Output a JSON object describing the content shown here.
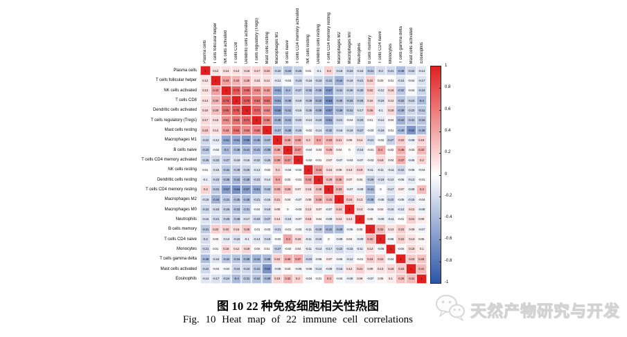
{
  "figure": {
    "caption_zh": "图 10   22 种免疫细胞相关性热图",
    "caption_en": "Fig. 10   Heat map of 22 immune cell correlations"
  },
  "watermark": {
    "icon": "wechat-logo",
    "text": "天然产物研究与开发",
    "color": "#d9d9d9"
  },
  "colorbar": {
    "ticks": [
      "1",
      "0.8",
      "0.6",
      "0.4",
      "0.2",
      "0",
      "-0.2",
      "-0.4",
      "-0.6",
      "-0.8",
      "-1"
    ],
    "max_color": "#e02020",
    "mid_color": "#ffffff",
    "min_color": "#2b54a7"
  },
  "chart_data": {
    "type": "heatmap",
    "title": "Heat map of 22 immune cell correlations",
    "value_range": [
      -1,
      1
    ],
    "symmetric": true,
    "diagonal_value": 1,
    "legend_position": "right",
    "labels": [
      "Plasma cells",
      "T cells follicular helper",
      "NK cells activated",
      "T cells CD8",
      "Dendritic cells activated",
      "T cells regulatory (Tregs)",
      "Mast cells resting",
      "Macrophages M1",
      "B cells naive",
      "T cells CD4 memory activated",
      "NK cells resting",
      "Dendritic cells resting",
      "T cells CD4 memory resting",
      "Macrophages M2",
      "Macrophages M0",
      "Neutrophils",
      "B cells memory",
      "T cells CD4 naive",
      "Monocytes",
      "T cells gamma delta",
      "Mast cells activated",
      "Eosinophils"
    ],
    "upper_triangle": [
      [
        0.12,
        0.13,
        0.14,
        0.16,
        0.17,
        0.23,
        -0.22,
        -0.33,
        -0.26,
        0.01,
        -0.1,
        0.2,
        -0.18,
        -0.23,
        -0.16,
        -0.31,
        -0.2,
        -0.21,
        -0.38,
        -0.22,
        -0.14
      ],
      [
        0.43,
        0.34,
        0.29,
        0.15,
        0.14,
        -0.12,
        -0.04,
        -0.23,
        -0.15,
        -0.23,
        -0.31,
        -0.44,
        -0.19,
        -0.21,
        0.22,
        0.03,
        0.01,
        -0.16,
        -0.04,
        -0.17
      ],
      [
        0.73,
        0.65,
        0.51,
        0.43,
        -0.51,
        -0.4,
        -0.27,
        -0.32,
        -0.35,
        -0.57,
        -0.31,
        -0.26,
        -0.25,
        0.22,
        -0.12,
        0.18,
        -0.32,
        -0.04,
        -0.24
      ],
      [
        0.75,
        0.64,
        0.64,
        -0.51,
        -0.38,
        -0.19,
        -0.28,
        -0.42,
        -0.64,
        -0.35,
        -0.33,
        -0.28,
        0.16,
        -0.18,
        0.12,
        -0.34,
        -0.24,
        -0.4
      ],
      [
        0.71,
        0.53,
        -0.59,
        -0.41,
        -0.16,
        -0.26,
        -0.38,
        -0.57,
        -0.38,
        -0.31,
        -0.17,
        0.26,
        -0.1,
        0.19,
        -0.39,
        -0.23,
        -0.31
      ],
      [
        0.56,
        -0.45,
        -0.41,
        -0.22,
        -0.13,
        -0.23,
        -0.51,
        -0.21,
        -0.04,
        -0.23,
        0.01,
        -0.14,
        0.04,
        -0.44,
        -0.31,
        -0.34
      ],
      [
        -0.37,
        -0.39,
        -0.25,
        -0.02,
        -0.14,
        -0.32,
        -0.16,
        -0.19,
        -0.27,
        -0.03,
        -0.19,
        0.01,
        -0.39,
        -0.62,
        -0.39
      ],
      [
        0.38,
        0.39,
        0.2,
        0.4,
        0.33,
        0.21,
        0.08,
        0.14,
        -0.21,
        -0.02,
        -0.27,
        0.22,
        -0.08,
        0.19
      ],
      [
        0.47,
        -0.04,
        0.03,
        0.29,
        0.04,
        0,
        -0.16,
        -0.01,
        0.4,
        -0.02,
        0.36,
        0.03,
        0.32
      ],
      [
        -0.02,
        -0.01,
        0.07,
        -0.07,
        -0.03,
        -0.07,
        -0.03,
        0.18,
        0.04,
        0.37,
        -0.06,
        0.2
      ],
      [
        0.44,
        0.15,
        0.09,
        0.13,
        0.19,
        -0.11,
        -0.11,
        -0.11,
        -0.22,
        -0.05,
        -0.04
      ],
      [
        0.28,
        0.35,
        0.07,
        0.04,
        -0.29,
        -0.18,
        -0.13,
        -0.06,
        -0.13,
        -0.01
      ],
      [
        0.33,
        -0.07,
        -0.09,
        -0.41,
        0,
        -0.17,
        0.07,
        -0.09,
        0.3
      ],
      [
        0.24,
        0.13,
        -0.38,
        -0.08,
        -0.22,
        -0.06,
        -0.15,
        -0.04
      ],
      [
        0.13,
        -0.05,
        0.04,
        -0.15,
        -0.12,
        0.12,
        -0.09
      ],
      [
        0.05,
        -0.09,
        -0.11,
        -0.01,
        0.21,
        0.09
      ],
      [
        0.32,
        0.13,
        0.23,
        0.09,
        -0.07
      ],
      [
        -0.06,
        0.22,
        0.13,
        0.05
      ],
      [
        -0.04,
        0.18,
        0.1
      ],
      [
        0.23,
        0.28
      ],
      [
        0.31
      ]
    ]
  }
}
